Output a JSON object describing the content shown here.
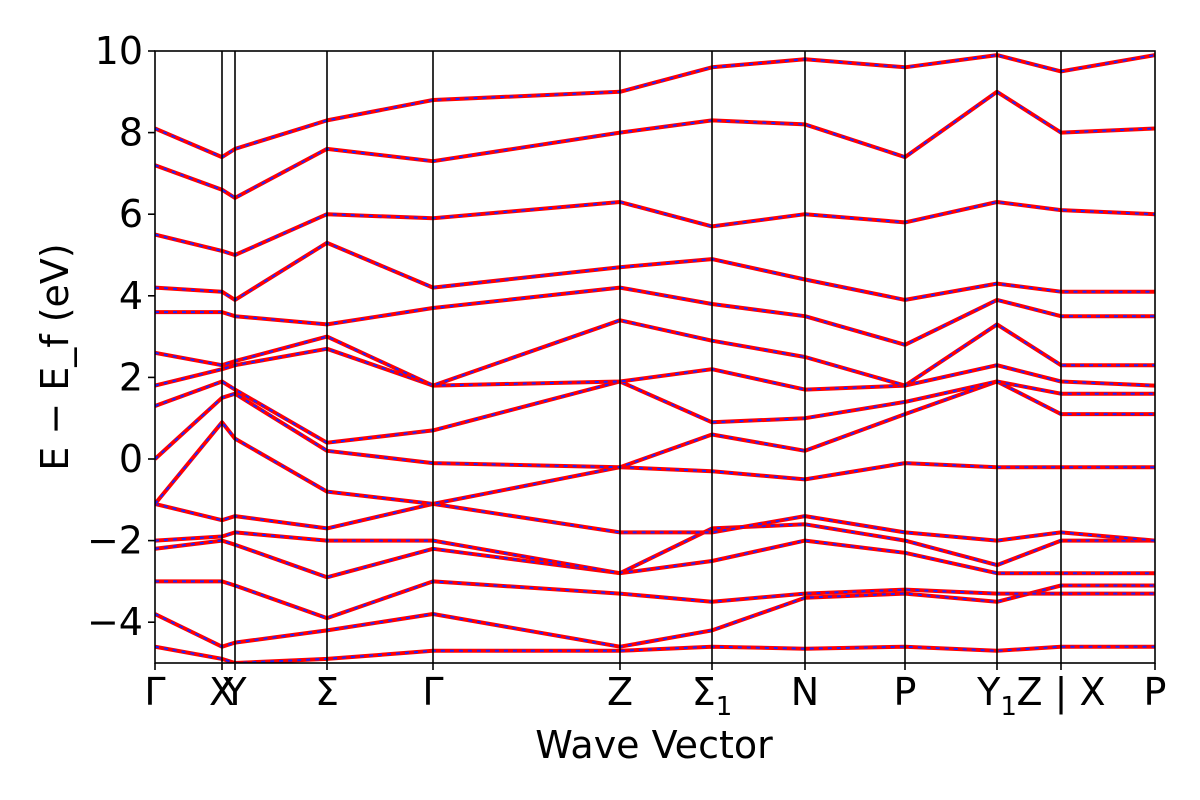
{
  "chart_data": {
    "type": "line",
    "title": "",
    "xlabel": "Wave Vector",
    "ylabel": "E − E_f (eV)",
    "ylim": [
      -5,
      10
    ],
    "yticks": [
      -4,
      -2,
      0,
      2,
      4,
      6,
      8,
      10
    ],
    "ytick_labels": [
      "−4",
      "−2",
      "0",
      "2",
      "4",
      "6",
      "8",
      "10"
    ],
    "xlim": [
      0,
      1
    ],
    "high_symmetry_points": [
      {
        "label": "Γ",
        "x": 0.0
      },
      {
        "label": "X",
        "x": 0.067
      },
      {
        "label": "Y",
        "x": 0.08
      },
      {
        "label": "Σ",
        "x": 0.172
      },
      {
        "label": "Γ",
        "x": 0.278
      },
      {
        "label": "Z",
        "x": 0.465
      },
      {
        "label": "Σ",
        "sub": "1",
        "x": 0.557
      },
      {
        "label": "N",
        "x": 0.65
      },
      {
        "label": "P",
        "x": 0.75
      },
      {
        "label": "Y",
        "sub": "1",
        "x": 0.842
      },
      {
        "label": "Z | X",
        "x": 0.906
      },
      {
        "label": "P",
        "x": 1.0
      }
    ],
    "grid": false,
    "series_style": {
      "line_color": "#ff0000",
      "dash_color": "#2020ff"
    },
    "series": [
      {
        "x": [
          0,
          0.067,
          0.08,
          0.172,
          0.278,
          0.465,
          0.557,
          0.65,
          0.75,
          0.842,
          0.906,
          1.0
        ],
        "y": [
          -4.6,
          -4.9,
          -5.0,
          -4.9,
          -4.7,
          -4.7,
          -4.6,
          -4.65,
          -4.6,
          -4.7,
          -4.6,
          -4.6
        ]
      },
      {
        "x": [
          0,
          0.067,
          0.08,
          0.172,
          0.278,
          0.465,
          0.557,
          0.65,
          0.75,
          0.842,
          0.906,
          1.0
        ],
        "y": [
          -3.8,
          -4.6,
          -4.5,
          -4.2,
          -3.8,
          -4.6,
          -4.2,
          -3.4,
          -3.3,
          -3.5,
          -3.1,
          -3.1
        ]
      },
      {
        "x": [
          0,
          0.067,
          0.08,
          0.172,
          0.278,
          0.465,
          0.557,
          0.65,
          0.75,
          0.842,
          0.906,
          1.0
        ],
        "y": [
          -3.0,
          -3.0,
          -3.1,
          -3.9,
          -3.0,
          -3.3,
          -3.5,
          -3.3,
          -3.2,
          -3.3,
          -3.3,
          -3.3
        ]
      },
      {
        "x": [
          0,
          0.067,
          0.08,
          0.172,
          0.278,
          0.465,
          0.557,
          0.65,
          0.75,
          0.842,
          0.906,
          1.0
        ],
        "y": [
          -2.2,
          -2.0,
          -2.1,
          -2.9,
          -2.2,
          -2.8,
          -2.5,
          -2.0,
          -2.3,
          -2.8,
          -2.8,
          -2.8
        ]
      },
      {
        "x": [
          0,
          0.067,
          0.08,
          0.172,
          0.278,
          0.465,
          0.557,
          0.65,
          0.75,
          0.842,
          0.906,
          1.0
        ],
        "y": [
          -2.0,
          -1.9,
          -1.8,
          -2.0,
          -2.0,
          -2.8,
          -1.7,
          -1.6,
          -2.0,
          -2.6,
          -2.0,
          -2.0
        ]
      },
      {
        "x": [
          0,
          0.067,
          0.08,
          0.172,
          0.278,
          0.465,
          0.557,
          0.65,
          0.75,
          0.842,
          0.906,
          1.0
        ],
        "y": [
          -1.1,
          -1.5,
          -1.4,
          -1.7,
          -1.1,
          -1.8,
          -1.8,
          -1.4,
          -1.8,
          -2.0,
          -1.8,
          -2.0
        ]
      },
      {
        "x": [
          0,
          0.067,
          0.08,
          0.172,
          0.278,
          0.465,
          0.557,
          0.65,
          0.75,
          0.842,
          0.906,
          1.0
        ],
        "y": [
          -1.1,
          0.9,
          0.5,
          -0.8,
          -1.1,
          -0.2,
          -0.3,
          -0.5,
          -0.1,
          -0.2,
          -0.2,
          -0.2
        ]
      },
      {
        "x": [
          0,
          0.067,
          0.08,
          0.172,
          0.278,
          0.465,
          0.557,
          0.65,
          0.75,
          0.842,
          0.906,
          1.0
        ],
        "y": [
          0.0,
          1.5,
          1.6,
          0.2,
          -0.1,
          -0.2,
          0.6,
          0.2,
          1.1,
          1.9,
          1.1,
          1.1
        ]
      },
      {
        "x": [
          0,
          0.067,
          0.08,
          0.172,
          0.278,
          0.465,
          0.557,
          0.65,
          0.75,
          0.842,
          0.906,
          1.0
        ],
        "y": [
          1.3,
          1.9,
          1.7,
          0.4,
          0.7,
          1.9,
          0.9,
          1.0,
          1.4,
          1.9,
          1.6,
          1.6
        ]
      },
      {
        "x": [
          0,
          0.067,
          0.08,
          0.172,
          0.278,
          0.465,
          0.557,
          0.65,
          0.75,
          0.842,
          0.906,
          1.0
        ],
        "y": [
          1.8,
          2.2,
          2.3,
          2.7,
          1.8,
          1.9,
          2.2,
          1.7,
          1.8,
          2.3,
          1.9,
          1.8
        ]
      },
      {
        "x": [
          0,
          0.067,
          0.08,
          0.172,
          0.278,
          0.465,
          0.557,
          0.65,
          0.75,
          0.842,
          0.906,
          1.0
        ],
        "y": [
          2.6,
          2.3,
          2.4,
          3.0,
          1.8,
          3.4,
          2.9,
          2.5,
          1.8,
          3.3,
          2.3,
          2.3
        ]
      },
      {
        "x": [
          0,
          0.067,
          0.08,
          0.172,
          0.278,
          0.465,
          0.557,
          0.65,
          0.75,
          0.842,
          0.906,
          1.0
        ],
        "y": [
          3.6,
          3.6,
          3.5,
          3.3,
          3.7,
          4.2,
          3.8,
          3.5,
          2.8,
          3.9,
          3.5,
          3.5
        ]
      },
      {
        "x": [
          0,
          0.067,
          0.08,
          0.172,
          0.278,
          0.465,
          0.557,
          0.65,
          0.75,
          0.842,
          0.906,
          1.0
        ],
        "y": [
          4.2,
          4.1,
          3.9,
          5.3,
          4.2,
          4.7,
          4.9,
          4.4,
          3.9,
          4.3,
          4.1,
          4.1
        ]
      },
      {
        "x": [
          0,
          0.067,
          0.08,
          0.172,
          0.278,
          0.465,
          0.557,
          0.65,
          0.75,
          0.842,
          0.906,
          1.0
        ],
        "y": [
          5.5,
          5.1,
          5.0,
          6.0,
          5.9,
          6.3,
          5.7,
          6.0,
          5.8,
          6.3,
          6.1,
          6.0
        ]
      },
      {
        "x": [
          0,
          0.067,
          0.08,
          0.172,
          0.278,
          0.465,
          0.557,
          0.65,
          0.75,
          0.842,
          0.906,
          1.0
        ],
        "y": [
          7.2,
          6.6,
          6.4,
          7.6,
          7.3,
          8.0,
          8.3,
          8.2,
          7.4,
          9.0,
          8.0,
          8.1
        ]
      },
      {
        "x": [
          0,
          0.067,
          0.08,
          0.172,
          0.278,
          0.465,
          0.557,
          0.65,
          0.75,
          0.842,
          0.906,
          1.0
        ],
        "y": [
          8.1,
          7.4,
          7.6,
          8.3,
          8.8,
          9.0,
          9.6,
          9.8,
          9.6,
          9.9,
          9.5,
          9.9
        ]
      }
    ]
  }
}
